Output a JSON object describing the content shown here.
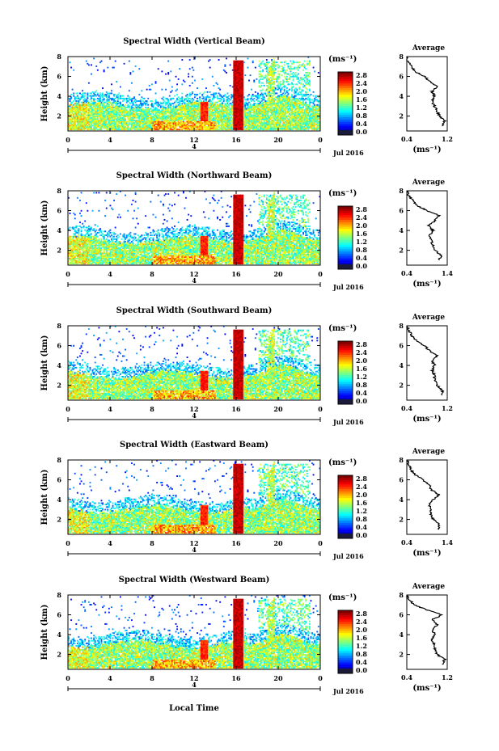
{
  "figure": {
    "xlabel": "Local Time",
    "date_label": "Jul 2016",
    "day_marker": "4",
    "colorbar_unit": "(ms⁻¹)",
    "average_unit": "(ms⁻¹)",
    "average_title": "Average",
    "ylabel": "Height (km)"
  },
  "chart_data": [
    {
      "type": "heatmap",
      "title": "Spectral Width (Vertical Beam)",
      "xlabel": "Local Time",
      "ylabel": "Height (km)",
      "xlim": [
        0,
        24
      ],
      "ylim": [
        0.5,
        8
      ],
      "xticks": [
        "0",
        "4",
        "8",
        "12",
        "16",
        "20",
        "0"
      ],
      "yticks": [
        "2",
        "4",
        "6",
        "8"
      ],
      "colorbar": {
        "label": "(ms⁻¹)",
        "range": [
          0,
          2.8
        ],
        "ticks": [
          "2.8",
          "2.4",
          "2.0",
          "1.6",
          "1.2",
          "0.8",
          "0.4",
          "0.0"
        ]
      },
      "average": {
        "title": "Average",
        "xlabel": "(ms⁻¹)",
        "xlim": [
          0.4,
          1.2
        ],
        "xticks": [
          "0.4",
          "1.2"
        ],
        "yticks": [
          "2",
          "4",
          "6",
          "8"
        ],
        "profile": [
          [
            1.1,
            1.0
          ],
          [
            1.15,
            1.5
          ],
          [
            1.05,
            2.0
          ],
          [
            1.0,
            2.5
          ],
          [
            0.95,
            3.0
          ],
          [
            0.9,
            3.5
          ],
          [
            0.95,
            4.0
          ],
          [
            0.9,
            4.5
          ],
          [
            1.0,
            5.0
          ],
          [
            0.85,
            5.5
          ],
          [
            0.75,
            6.0
          ],
          [
            0.55,
            6.5
          ],
          [
            0.5,
            7.0
          ],
          [
            0.42,
            7.5
          ],
          [
            0.4,
            8.0
          ]
        ]
      }
    },
    {
      "type": "heatmap",
      "title": "Spectral Width (Northward Beam)",
      "xlabel": "Local Time",
      "ylabel": "Height (km)",
      "xlim": [
        0,
        24
      ],
      "ylim": [
        0.5,
        8
      ],
      "xticks": [
        "0",
        "4",
        "8",
        "12",
        "16",
        "20",
        "0"
      ],
      "yticks": [
        "2",
        "4",
        "6",
        "8"
      ],
      "colorbar": {
        "label": "(ms⁻¹)",
        "range": [
          0,
          2.8
        ],
        "ticks": [
          "2.8",
          "2.4",
          "2.0",
          "1.6",
          "1.2",
          "0.8",
          "0.4",
          "0.0"
        ]
      },
      "average": {
        "title": "Average",
        "xlabel": "(ms⁻¹)",
        "xlim": [
          0.4,
          1.4
        ],
        "xticks": [
          "0.4",
          "1.4"
        ],
        "yticks": [
          "2",
          "4",
          "6",
          "8"
        ],
        "profile": [
          [
            1.2,
            1.0
          ],
          [
            1.25,
            1.5
          ],
          [
            1.1,
            2.0
          ],
          [
            1.05,
            2.5
          ],
          [
            1.0,
            3.0
          ],
          [
            0.95,
            3.5
          ],
          [
            1.05,
            4.0
          ],
          [
            0.95,
            4.5
          ],
          [
            1.1,
            5.0
          ],
          [
            1.2,
            5.5
          ],
          [
            0.9,
            6.0
          ],
          [
            0.65,
            6.5
          ],
          [
            0.55,
            7.0
          ],
          [
            0.45,
            7.5
          ],
          [
            0.4,
            8.0
          ]
        ]
      }
    },
    {
      "type": "heatmap",
      "title": "Spectral Width (Southward Beam)",
      "xlabel": "Local Time",
      "ylabel": "Height (km)",
      "xlim": [
        0,
        24
      ],
      "ylim": [
        0.5,
        8
      ],
      "xticks": [
        "0",
        "4",
        "8",
        "12",
        "16",
        "20",
        "0"
      ],
      "yticks": [
        "2",
        "4",
        "6",
        "8"
      ],
      "colorbar": {
        "label": "(ms⁻¹)",
        "range": [
          0,
          2.8
        ],
        "ticks": [
          "2.8",
          "2.4",
          "2.0",
          "1.6",
          "1.2",
          "0.8",
          "0.4",
          "0.0"
        ]
      },
      "average": {
        "title": "Average",
        "xlabel": "(ms⁻¹)",
        "xlim": [
          0.4,
          1.2
        ],
        "xticks": [
          "0.4",
          "1.2"
        ],
        "yticks": [
          "2",
          "4",
          "6",
          "8"
        ],
        "profile": [
          [
            1.1,
            1.0
          ],
          [
            1.1,
            1.5
          ],
          [
            1.0,
            2.0
          ],
          [
            0.95,
            2.5
          ],
          [
            0.95,
            3.0
          ],
          [
            0.9,
            3.5
          ],
          [
            0.95,
            4.0
          ],
          [
            0.9,
            4.5
          ],
          [
            1.0,
            5.0
          ],
          [
            0.85,
            5.5
          ],
          [
            0.75,
            6.0
          ],
          [
            0.6,
            6.5
          ],
          [
            0.5,
            7.0
          ],
          [
            0.45,
            7.5
          ],
          [
            0.4,
            8.0
          ]
        ]
      }
    },
    {
      "type": "heatmap",
      "title": "Spectral Width (Eastward Beam)",
      "xlabel": "Local Time",
      "ylabel": "Height (km)",
      "xlim": [
        0,
        24
      ],
      "ylim": [
        0.5,
        8
      ],
      "xticks": [
        "0",
        "4",
        "8",
        "12",
        "16",
        "20",
        "0"
      ],
      "yticks": [
        "2",
        "4",
        "6",
        "8"
      ],
      "colorbar": {
        "label": "(ms⁻¹)",
        "range": [
          0,
          2.8
        ],
        "ticks": [
          "2.8",
          "2.4",
          "2.0",
          "1.6",
          "1.2",
          "0.8",
          "0.4",
          "0.0"
        ]
      },
      "average": {
        "title": "Average",
        "xlabel": "(ms⁻¹)",
        "xlim": [
          0.4,
          1.4
        ],
        "xticks": [
          "0.4",
          "1.4"
        ],
        "yticks": [
          "2",
          "4",
          "6",
          "8"
        ],
        "profile": [
          [
            1.2,
            1.0
          ],
          [
            1.2,
            1.5
          ],
          [
            1.05,
            2.0
          ],
          [
            1.0,
            2.5
          ],
          [
            1.0,
            3.0
          ],
          [
            0.95,
            3.5
          ],
          [
            1.05,
            4.0
          ],
          [
            1.2,
            4.5
          ],
          [
            1.0,
            5.0
          ],
          [
            0.95,
            5.5
          ],
          [
            0.8,
            6.0
          ],
          [
            0.6,
            6.5
          ],
          [
            0.5,
            7.0
          ],
          [
            0.45,
            7.5
          ],
          [
            0.4,
            8.0
          ]
        ]
      }
    },
    {
      "type": "heatmap",
      "title": "Spectral Width (Westward Beam)",
      "xlabel": "Local Time",
      "ylabel": "Height (km)",
      "xlim": [
        0,
        24
      ],
      "ylim": [
        0.5,
        8
      ],
      "xticks": [
        "0",
        "4",
        "8",
        "12",
        "16",
        "20",
        "0"
      ],
      "yticks": [
        "2",
        "4",
        "6",
        "8"
      ],
      "colorbar": {
        "label": "(ms⁻¹)",
        "range": [
          0,
          2.8
        ],
        "ticks": [
          "2.8",
          "2.4",
          "2.0",
          "1.6",
          "1.2",
          "0.8",
          "0.4",
          "0.0"
        ]
      },
      "average": {
        "title": "Average",
        "xlabel": "(ms⁻¹)",
        "xlim": [
          0.4,
          1.2
        ],
        "xticks": [
          "0.4",
          "1.2"
        ],
        "yticks": [
          "2",
          "4",
          "6",
          "8"
        ],
        "profile": [
          [
            1.1,
            1.0
          ],
          [
            1.15,
            1.5
          ],
          [
            1.0,
            2.0
          ],
          [
            0.95,
            2.5
          ],
          [
            0.95,
            3.0
          ],
          [
            0.9,
            3.5
          ],
          [
            0.95,
            4.0
          ],
          [
            0.9,
            4.5
          ],
          [
            1.0,
            5.0
          ],
          [
            0.9,
            5.5
          ],
          [
            1.1,
            6.0
          ],
          [
            0.8,
            6.5
          ],
          [
            0.55,
            7.0
          ],
          [
            0.45,
            7.5
          ],
          [
            0.4,
            8.0
          ]
        ]
      }
    }
  ]
}
